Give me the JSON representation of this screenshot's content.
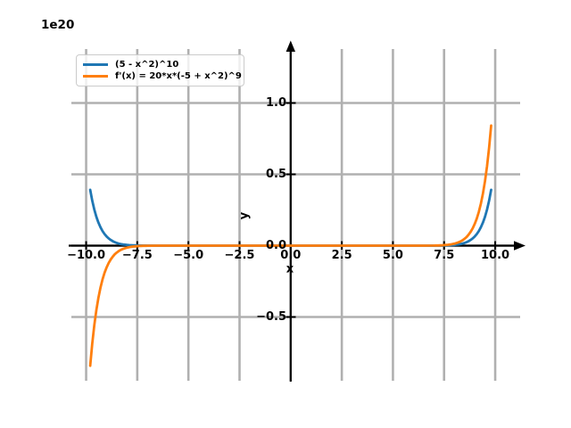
{
  "chart_data": {
    "type": "line",
    "title": "",
    "y_offset_text": "1e20",
    "xlabel": "x",
    "ylabel": "y",
    "grid": true,
    "legend_position": "upper left",
    "xlim": [
      -10.72,
      11.5
    ],
    "ylim": [
      -0.95,
      1.38
    ],
    "x_ticks": [
      -10.0,
      -7.5,
      -5.0,
      -2.5,
      0.0,
      2.5,
      5.0,
      7.5,
      10.0
    ],
    "x_tick_labels": [
      "−10.0",
      "−7.5",
      "−5.0",
      "−2.5",
      "0.0",
      "2.5",
      "5.0",
      "7.5",
      "10.0"
    ],
    "y_ticks": [
      1.0,
      0.5,
      0.0,
      -0.5
    ],
    "y_tick_labels": [
      "1.0",
      "0.5",
      "0.0",
      "−0.5"
    ],
    "x": [
      -9.8,
      -9.7,
      -9.6,
      -9.5,
      -9.4,
      -9.3,
      -9.2,
      -9.1,
      -9.0,
      -8.9,
      -8.8,
      -8.7,
      -8.6,
      -8.5,
      -8.4,
      -8.3,
      -8.2,
      -8.1,
      -8.0,
      -7.9,
      -7.8,
      -7.7,
      -7.6,
      -7.5,
      -7.4,
      -7.3,
      -7.2,
      -7.1,
      -7.0,
      -6.5,
      -6.0,
      -5.0,
      -4.0,
      -3.0,
      -2.0,
      -1.0,
      0.0,
      1.0,
      2.0,
      3.0,
      4.0,
      5.0,
      6.0,
      6.5,
      7.0,
      7.1,
      7.2,
      7.3,
      7.4,
      7.5,
      7.6,
      7.7,
      7.8,
      7.9,
      8.0,
      8.1,
      8.2,
      8.3,
      8.4,
      8.5,
      8.6,
      8.7,
      8.8,
      8.9,
      9.0,
      9.1,
      9.2,
      9.3,
      9.4,
      9.5,
      9.6,
      9.7,
      9.8
    ],
    "series": [
      {
        "name": "(5 - x^2)^10",
        "color": "#1f77b4",
        "y": [
          0.3911,
          0.315,
          0.25306,
          0.20275,
          0.16202,
          0.12915,
          0.10263,
          0.08136,
          0.06429,
          0.05065,
          0.0398,
          0.03117,
          0.02432,
          0.01892,
          0.01467,
          0.01133,
          0.00875,
          0.00669,
          0.00511,
          0.00389,
          0.00295,
          0.00222,
          0.00167,
          0.00125,
          0.00093,
          0.00069,
          0.00051,
          0.00037,
          0.00027,
          5e-05,
          1e-05,
          0,
          0,
          0,
          0,
          0,
          0,
          0,
          0,
          0,
          0,
          0,
          1e-05,
          5e-05,
          0.00027,
          0.00037,
          0.00051,
          0.00069,
          0.00093,
          0.00125,
          0.00167,
          0.00222,
          0.00295,
          0.00389,
          0.00511,
          0.00669,
          0.00875,
          0.01133,
          0.01467,
          0.01892,
          0.02432,
          0.03117,
          0.0398,
          0.05065,
          0.06429,
          0.08136,
          0.10263,
          0.12915,
          0.16202,
          0.20275,
          0.25306,
          0.315,
          0.3911
        ]
      },
      {
        "name": "f'(x) = 20*x*(-5 + x^2)^9",
        "color": "#ff7f0e",
        "y": [
          -0.842,
          -0.68597,
          -0.55745,
          -0.45188,
          -0.3654,
          -0.29479,
          -0.23712,
          -0.19031,
          -0.15226,
          -0.1215,
          -0.0967,
          -0.07671,
          -0.06066,
          -0.04783,
          -0.0376,
          -0.02944,
          -0.02306,
          -0.01788,
          -0.01386,
          -0.0107,
          -0.00824,
          -0.00631,
          -0.00482,
          -0.00366,
          -0.00277,
          -0.00209,
          -0.00156,
          -0.00117,
          -0.00087,
          -0.00018,
          -3e-05,
          0,
          0,
          0,
          0,
          0,
          0,
          0,
          0,
          0,
          0,
          0,
          3e-05,
          0.00018,
          0.00087,
          0.00117,
          0.00156,
          0.00209,
          0.00277,
          0.00366,
          0.00482,
          0.00631,
          0.00824,
          0.0107,
          0.01386,
          0.01788,
          0.02306,
          0.02944,
          0.0376,
          0.04783,
          0.06066,
          0.07671,
          0.0967,
          0.1215,
          0.15226,
          0.19031,
          0.23712,
          0.29479,
          0.3654,
          0.45188,
          0.55745,
          0.68597,
          0.842
        ]
      }
    ]
  }
}
